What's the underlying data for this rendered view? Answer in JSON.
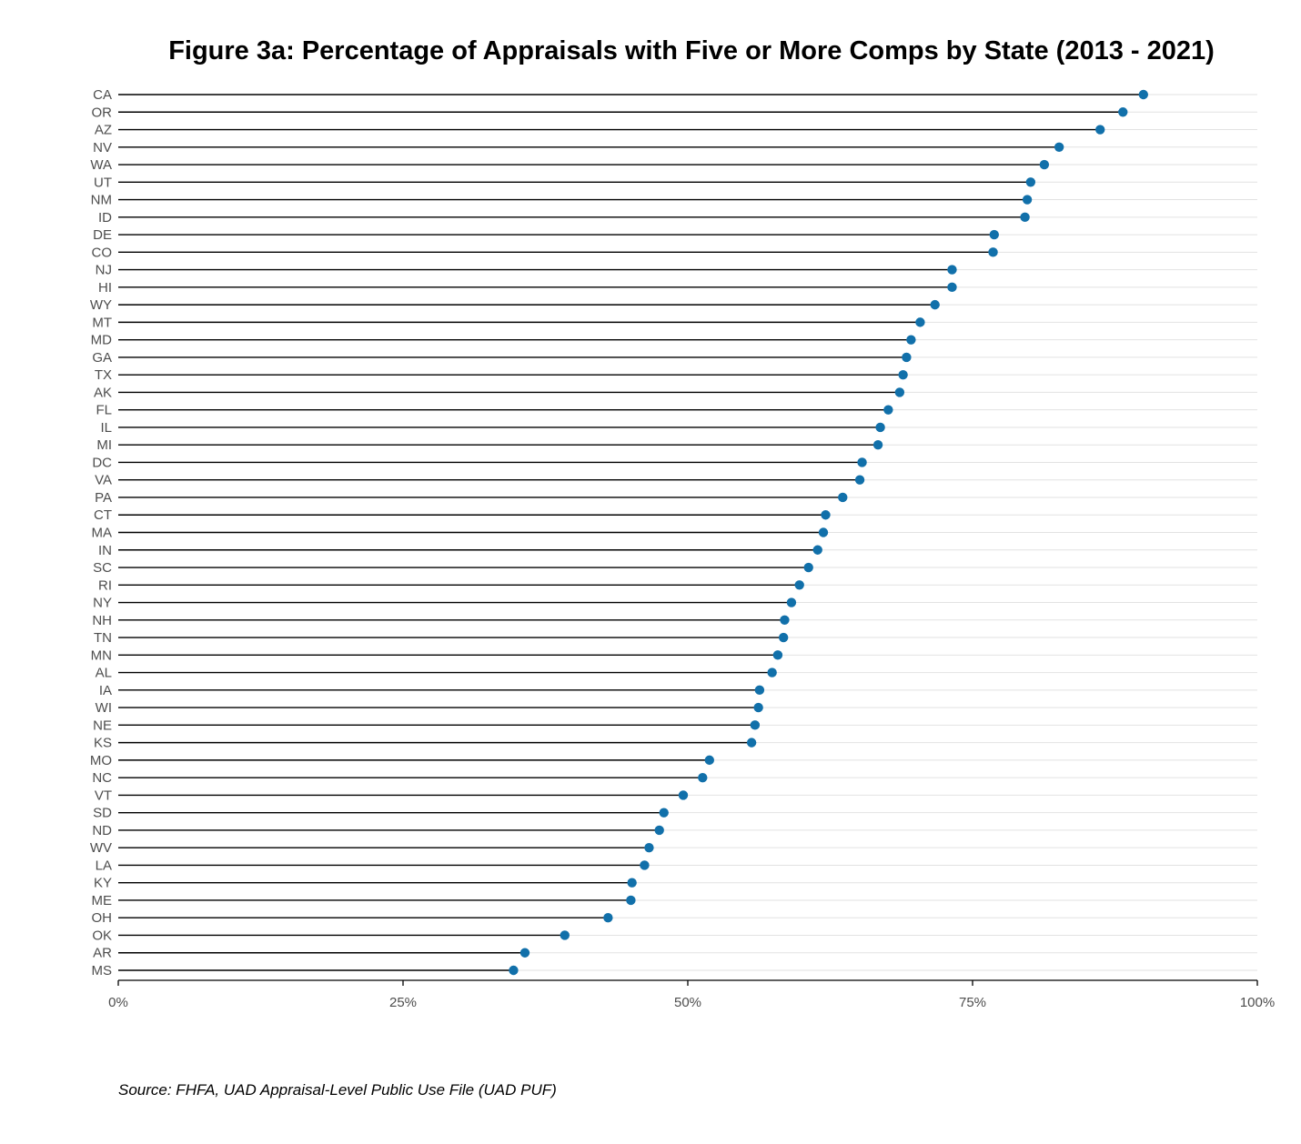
{
  "chart_data": {
    "type": "lollipop",
    "title": "Figure 3a: Percentage of Appraisals with Five or More Comps by State (2013 - 2021)",
    "source": "Source: FHFA, UAD Appraisal-Level Public Use File (UAD PUF)",
    "xlabel": "",
    "ylabel": "",
    "xlim": [
      0,
      100
    ],
    "x_ticks": [
      0,
      25,
      50,
      75,
      100
    ],
    "x_tick_labels": [
      "0%",
      "25%",
      "50%",
      "75%",
      "100%"
    ],
    "grid": "horizontal",
    "marker_color": "#1170aa",
    "categories": [
      "CA",
      "OR",
      "AZ",
      "NV",
      "WA",
      "UT",
      "NM",
      "ID",
      "DE",
      "CO",
      "NJ",
      "HI",
      "WY",
      "MT",
      "MD",
      "GA",
      "TX",
      "AK",
      "FL",
      "IL",
      "MI",
      "DC",
      "VA",
      "PA",
      "CT",
      "MA",
      "IN",
      "SC",
      "RI",
      "NY",
      "NH",
      "TN",
      "MN",
      "AL",
      "IA",
      "WI",
      "NE",
      "KS",
      "MO",
      "NC",
      "VT",
      "SD",
      "ND",
      "WV",
      "LA",
      "KY",
      "ME",
      "OH",
      "OK",
      "AR",
      "MS"
    ],
    "values": [
      90.0,
      88.2,
      86.2,
      82.6,
      81.3,
      80.1,
      79.8,
      79.6,
      76.9,
      76.8,
      73.2,
      73.2,
      71.7,
      70.4,
      69.6,
      69.2,
      68.9,
      68.6,
      67.6,
      66.9,
      66.7,
      65.3,
      65.1,
      63.6,
      62.1,
      61.9,
      61.4,
      60.6,
      59.8,
      59.1,
      58.5,
      58.4,
      57.9,
      57.4,
      56.3,
      56.2,
      55.9,
      55.6,
      51.9,
      51.3,
      49.6,
      47.9,
      47.5,
      46.6,
      46.2,
      45.1,
      45.0,
      43.0,
      39.2,
      35.7,
      34.7
    ]
  }
}
